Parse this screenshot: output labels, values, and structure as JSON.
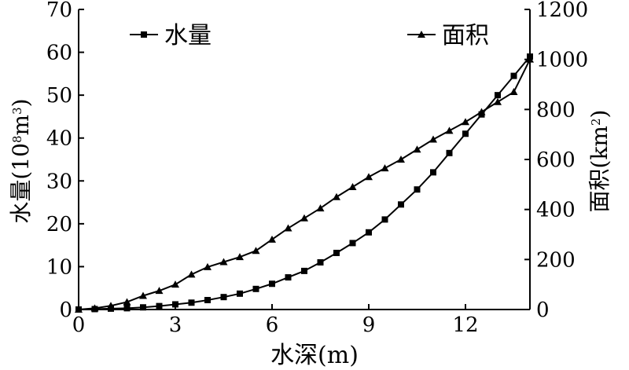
{
  "chart_data": {
    "type": "line",
    "xlabel": "水深(m)",
    "ylabel_left": {
      "base": "水量(10",
      "sup1": "8",
      "mid": "m",
      "sup2": "3",
      "end": ")"
    },
    "ylabel_right": {
      "base": "面积(km",
      "sup": "2",
      "end": ")"
    },
    "xlim": [
      0,
      14
    ],
    "ylim_left": [
      0,
      70
    ],
    "ylim_right": [
      0,
      1200
    ],
    "xticks": [
      0,
      3,
      6,
      9,
      12
    ],
    "yticks_left": [
      0,
      10,
      20,
      30,
      40,
      50,
      60,
      70
    ],
    "yticks_right": [
      0,
      200,
      400,
      600,
      800,
      1000,
      1200
    ],
    "legend_placement": "top",
    "series": [
      {
        "name": "水量",
        "axis": "left",
        "marker": "square",
        "x": [
          0,
          0.5,
          1,
          1.5,
          2,
          2.5,
          3,
          3.5,
          4,
          4.5,
          5,
          5.5,
          6,
          6.5,
          7,
          7.5,
          8,
          8.5,
          9,
          9.5,
          10,
          10.5,
          11,
          11.5,
          12,
          12.5,
          13,
          13.5,
          14
        ],
        "values": [
          0,
          0.1,
          0.2,
          0.3,
          0.5,
          0.8,
          1.2,
          1.6,
          2.2,
          2.9,
          3.7,
          4.8,
          6.0,
          7.5,
          9.0,
          11.0,
          13.2,
          15.5,
          18.0,
          21.0,
          24.5,
          28.0,
          32.0,
          36.5,
          41.0,
          45.5,
          50.0,
          54.5,
          59.0
        ]
      },
      {
        "name": "面积",
        "axis": "right",
        "marker": "triangle",
        "x": [
          0,
          0.5,
          1,
          1.5,
          2,
          2.5,
          3,
          3.5,
          4,
          4.5,
          5,
          5.5,
          6,
          6.5,
          7,
          7.5,
          8,
          8.5,
          9,
          9.5,
          10,
          10.5,
          11,
          11.5,
          12,
          12.5,
          13,
          13.5,
          14
        ],
        "values": [
          0,
          5,
          15,
          30,
          55,
          75,
          100,
          140,
          170,
          190,
          210,
          235,
          280,
          325,
          365,
          405,
          450,
          490,
          530,
          565,
          600,
          640,
          680,
          715,
          750,
          790,
          830,
          870,
          1000
        ]
      }
    ]
  }
}
